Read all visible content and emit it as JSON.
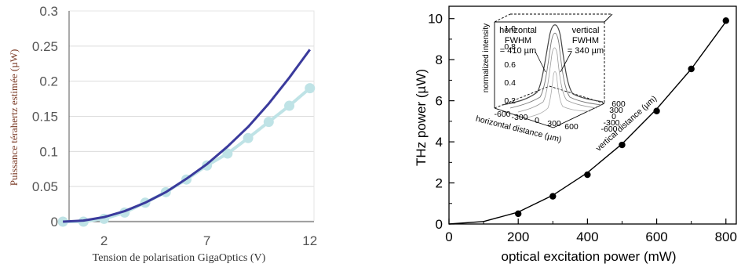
{
  "chart_data": [
    {
      "type": "line",
      "title": "",
      "xlabel": "Tension de polarisation GigaOptics (V)",
      "ylabel": "Puissance térahertz estimée (µW)",
      "xlim": [
        0.3,
        12.2
      ],
      "ylim": [
        0,
        0.3
      ],
      "x_ticks": [
        "2",
        "7",
        "12"
      ],
      "y_ticks": [
        "0",
        "0.05",
        "0.1",
        "0.15",
        "0.2",
        "0.25",
        "0.3"
      ],
      "grid": "horizontal",
      "colors": {
        "fit": "#3a3a9c",
        "measured": "#bfe3e6",
        "grid": "#dcdcdc",
        "axis": "#555555"
      },
      "series": [
        {
          "style": "line",
          "x": [
            0,
            1,
            2,
            3,
            4,
            5,
            6,
            7,
            8,
            9,
            10,
            11,
            12
          ],
          "y": [
            0,
            0.0015,
            0.0065,
            0.015,
            0.027,
            0.042,
            0.061,
            0.082,
            0.107,
            0.135,
            0.168,
            0.205,
            0.245
          ]
        },
        {
          "style": "line+markers",
          "x": [
            0,
            1,
            2,
            3,
            4,
            5,
            6,
            7,
            8,
            9,
            10,
            11,
            12
          ],
          "y": [
            0,
            0,
            0.004,
            0.013,
            0.027,
            0.042,
            0.06,
            0.08,
            0.097,
            0.119,
            0.142,
            0.165,
            0.19
          ]
        }
      ]
    },
    {
      "type": "scatter",
      "title": "",
      "xlabel": "optical excitation power (mW)",
      "ylabel": "THz power (µW)",
      "xlim": [
        0,
        830
      ],
      "ylim": [
        0,
        10.6
      ],
      "x_ticks": [
        "0",
        "200",
        "400",
        "600",
        "800"
      ],
      "y_ticks": [
        "0",
        "2",
        "4",
        "6",
        "8",
        "10"
      ],
      "grid": "none",
      "series": [
        {
          "style": "markers",
          "x": [
            200,
            300,
            400,
            500,
            600,
            700,
            800
          ],
          "y": [
            0.5,
            1.35,
            2.4,
            3.85,
            5.5,
            7.55,
            9.9
          ]
        },
        {
          "style": "fit-line",
          "x": [
            0,
            100,
            200,
            300,
            400,
            500,
            600,
            700,
            800
          ],
          "y": [
            0,
            0.12,
            0.58,
            1.4,
            2.5,
            3.9,
            5.6,
            7.55,
            9.85
          ]
        }
      ],
      "inset": {
        "type": "3d-surface",
        "zlabel": "normalized intensity",
        "xlabel": "horizontal distance (µm)",
        "ylabel": "vertical distance (µm)",
        "z_ticks": [
          "0.2",
          "0.4",
          "0.6",
          "0.8",
          "1.0"
        ],
        "x_ticks": [
          "-600",
          "-300",
          "0",
          "300",
          "600"
        ],
        "y_ticks": [
          "600",
          "300",
          "0",
          "-300",
          "-600"
        ],
        "annotations": [
          {
            "lines": [
              "horizontal",
              "FWHM",
              "= 410 µm"
            ]
          },
          {
            "lines": [
              "vertical",
              "FWHM",
              "= 340 µm"
            ]
          }
        ]
      }
    }
  ]
}
